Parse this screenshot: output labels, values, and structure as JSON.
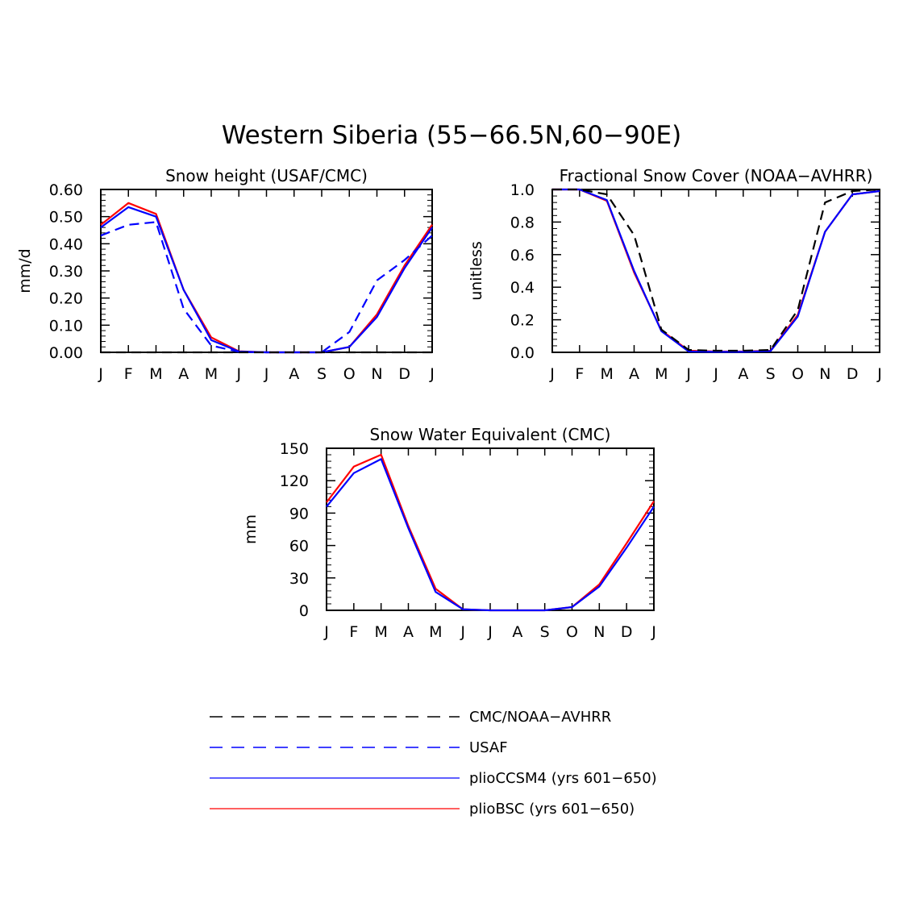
{
  "figure": {
    "title": "Western Siberia (55−66.5N,60−90E)"
  },
  "colors": {
    "pliocesm4": "#0000ff",
    "pliobsc": "#ff0000",
    "usaf": "#0000ff",
    "cmc_noaa": "#000000"
  },
  "chart_data": [
    {
      "type": "line",
      "title": "Snow height (USAF/CMC)",
      "xlabel": "",
      "ylabel": "mm/d",
      "categories": [
        "J",
        "F",
        "M",
        "A",
        "M",
        "J",
        "J",
        "A",
        "S",
        "O",
        "N",
        "D",
        "J"
      ],
      "yticks": [
        "0.00",
        "0.10",
        "0.20",
        "0.30",
        "0.40",
        "0.50",
        "0.60"
      ],
      "ylim": [
        0,
        0.6
      ],
      "series": [
        {
          "name": "plioBSC (yrs 601−650)",
          "color_key": "pliobsc",
          "dash": "solid",
          "values": [
            0.47,
            0.55,
            0.51,
            0.23,
            0.055,
            0.004,
            0,
            0,
            0,
            0.02,
            0.14,
            0.32,
            0.47
          ]
        },
        {
          "name": "plioCCSM4 (yrs 601−650)",
          "color_key": "pliocesm4",
          "dash": "solid",
          "values": [
            0.46,
            0.535,
            0.5,
            0.23,
            0.045,
            0.003,
            0,
            0,
            0,
            0.02,
            0.13,
            0.31,
            0.46
          ]
        },
        {
          "name": "USAF",
          "color_key": "usaf",
          "dash": "dashed",
          "values": [
            0.43,
            0.47,
            0.48,
            0.16,
            0.025,
            0.002,
            0,
            0,
            0,
            0.075,
            0.265,
            0.34,
            0.43
          ]
        },
        {
          "name": "CMC/NOAA−AVHRR",
          "color_key": "cmc_noaa",
          "dash": "dashed",
          "values": [
            0,
            0,
            0,
            0,
            0,
            0,
            0,
            0,
            0,
            0,
            0,
            0,
            0
          ]
        }
      ]
    },
    {
      "type": "line",
      "title": "Fractional Snow Cover (NOAA−AVHRR)",
      "xlabel": "",
      "ylabel": "unitless",
      "categories": [
        "J",
        "F",
        "M",
        "A",
        "M",
        "J",
        "J",
        "A",
        "S",
        "O",
        "N",
        "D",
        "J"
      ],
      "yticks": [
        "0.0",
        "0.2",
        "0.4",
        "0.6",
        "0.8",
        "1.0"
      ],
      "ylim": [
        0,
        1.0
      ],
      "series": [
        {
          "name": "plioBSC (yrs 601−650)",
          "color_key": "pliobsc",
          "dash": "solid",
          "values": [
            1.0,
            1.0,
            0.93,
            0.49,
            0.135,
            0.01,
            0.005,
            0.005,
            0.01,
            0.23,
            0.74,
            0.97,
            0.99
          ]
        },
        {
          "name": "plioCCSM4 (yrs 601−650)",
          "color_key": "pliocesm4",
          "dash": "solid",
          "values": [
            1.0,
            1.0,
            0.935,
            0.5,
            0.13,
            0.005,
            0.003,
            0.003,
            0.008,
            0.22,
            0.74,
            0.97,
            0.99
          ]
        },
        {
          "name": "CMC/NOAA−AVHRR",
          "color_key": "cmc_noaa",
          "dash": "dashed",
          "values": [
            1.0,
            1.0,
            0.97,
            0.72,
            0.14,
            0.015,
            0.01,
            0.01,
            0.015,
            0.26,
            0.92,
            0.99,
            1.0
          ]
        }
      ]
    },
    {
      "type": "line",
      "title": "Snow Water Equivalent (CMC)",
      "xlabel": "",
      "ylabel": "mm",
      "categories": [
        "J",
        "F",
        "M",
        "A",
        "M",
        "J",
        "J",
        "A",
        "S",
        "O",
        "N",
        "D",
        "J"
      ],
      "yticks": [
        "0",
        "30",
        "60",
        "90",
        "120",
        "150"
      ],
      "ylim": [
        0,
        150
      ],
      "series": [
        {
          "name": "plioBSC (yrs 601−650)",
          "color_key": "pliobsc",
          "dash": "solid",
          "values": [
            100,
            133,
            144,
            78,
            20,
            1,
            0,
            0,
            0,
            3,
            24,
            62,
            101
          ]
        },
        {
          "name": "plioCCSM4 (yrs 601−650)",
          "color_key": "pliocesm4",
          "dash": "solid",
          "values": [
            96,
            127,
            140,
            76,
            17,
            1,
            0,
            0,
            0,
            3,
            22,
            58,
            96
          ]
        }
      ]
    }
  ],
  "legend": {
    "placement": "bottom-center",
    "entries": [
      {
        "label": "CMC/NOAA−AVHRR",
        "color_key": "cmc_noaa",
        "dash": "dashed"
      },
      {
        "label": "USAF",
        "color_key": "usaf",
        "dash": "dashed"
      },
      {
        "label": "plioCCSM4 (yrs 601−650)",
        "color_key": "pliocesm4",
        "dash": "solid"
      },
      {
        "label": "plioBSC (yrs 601−650)",
        "color_key": "pliobsc",
        "dash": "solid"
      }
    ]
  }
}
